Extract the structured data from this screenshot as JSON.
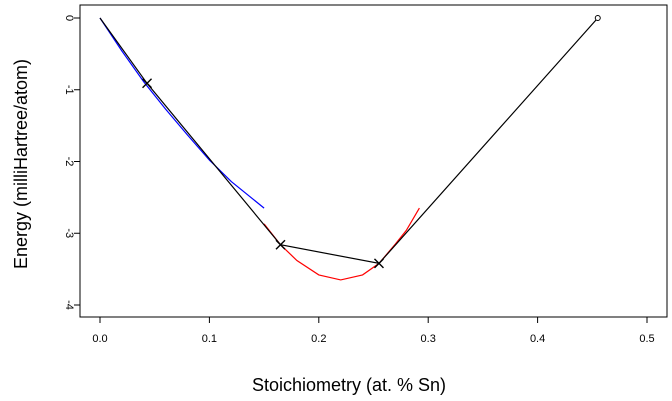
{
  "chart_data": {
    "type": "line",
    "title": "",
    "xlabel": "Stoichiometry (at. % Sn)",
    "ylabel": "Energy (milliHartree/atom)",
    "xlim": [
      0.0,
      0.5
    ],
    "ylim": [
      -4,
      0
    ],
    "xticks": [
      "0.0",
      "0.1",
      "0.2",
      "0.3",
      "0.4",
      "0.5"
    ],
    "yticks": [
      "0",
      "-1",
      "-2",
      "-3",
      "-4"
    ],
    "grid": false,
    "legend": "none",
    "series": [
      {
        "color": "#0000ff",
        "style": "line",
        "x": [
          0.0,
          0.02,
          0.04,
          0.06,
          0.08,
          0.1,
          0.12,
          0.15
        ],
        "y": [
          0.0,
          -0.46,
          -0.89,
          -1.27,
          -1.63,
          -1.98,
          -2.28,
          -2.65
        ]
      },
      {
        "color": "#ff0000",
        "style": "line",
        "x": [
          0.15,
          0.165,
          0.18,
          0.2,
          0.22,
          0.24,
          0.255,
          0.27,
          0.28,
          0.292
        ],
        "y": [
          -2.87,
          -3.16,
          -3.38,
          -3.58,
          -3.65,
          -3.58,
          -3.42,
          -3.15,
          -2.96,
          -2.65
        ]
      },
      {
        "color": "#000000",
        "style": "line",
        "x": [
          0.0,
          0.043,
          0.165,
          0.255,
          0.455
        ],
        "y": [
          0.0,
          -0.91,
          -3.16,
          -3.42,
          0.0
        ]
      },
      {
        "color": "#000000",
        "style": "markers",
        "marker": "x",
        "x": [
          0.043,
          0.165,
          0.255
        ],
        "y": [
          -0.91,
          -3.16,
          -3.42
        ]
      },
      {
        "color": "#000000",
        "style": "markers",
        "marker": "open-circle",
        "x": [
          0.455
        ],
        "y": [
          0.0
        ]
      }
    ]
  }
}
